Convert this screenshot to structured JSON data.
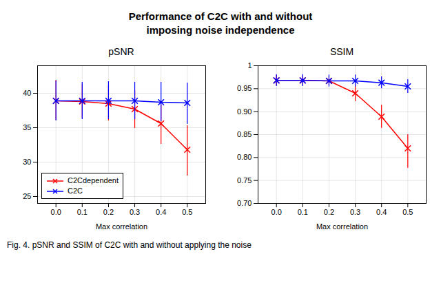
{
  "title": "Performance of C2C with and without\nimposing noise independence",
  "caption": "Fig. 4. pSNR and SSIM of C2C with and without applying the noise",
  "chart_data": [
    {
      "type": "line",
      "title": "pSNR",
      "xlabel": "Max correlation",
      "x": [
        0.0,
        0.1,
        0.2,
        0.3,
        0.4,
        0.5
      ],
      "xlim": [
        -0.07,
        0.57
      ],
      "xticks": [
        {
          "value": 0.0,
          "label": "0.0"
        },
        0.1,
        0.2,
        0.3,
        0.4,
        0.5
      ],
      "ylim": [
        24,
        44
      ],
      "yticks": [
        25,
        30,
        35,
        40
      ],
      "grid": true,
      "legend": "lower left",
      "series": [
        {
          "name": "C2Cdependent",
          "color": "#FF0000",
          "marker": "x",
          "values": [
            38.9,
            38.8,
            38.5,
            37.7,
            35.6,
            31.8
          ],
          "error_upper": [
            3.0,
            2.5,
            2.6,
            2.7,
            2.7,
            3.5
          ],
          "error_lower": [
            2.8,
            2.4,
            2.5,
            2.8,
            3.0,
            3.8
          ]
        },
        {
          "name": "C2C",
          "color": "#0000FF",
          "marker": "x",
          "values": [
            38.9,
            38.9,
            38.9,
            38.9,
            38.7,
            38.6
          ],
          "error_upper": [
            2.9,
            2.7,
            2.8,
            2.7,
            2.9,
            2.9
          ],
          "error_lower": [
            2.9,
            2.7,
            2.7,
            2.7,
            2.8,
            3.1
          ]
        }
      ]
    },
    {
      "type": "line",
      "title": "SSIM",
      "xlabel": "Max correlation",
      "x": [
        0.0,
        0.1,
        0.2,
        0.3,
        0.4,
        0.5
      ],
      "xlim": [
        -0.07,
        0.57
      ],
      "xticks": [
        {
          "value": 0.0,
          "label": "0.0"
        },
        0.1,
        0.2,
        0.3,
        0.4,
        0.5
      ],
      "ylim": [
        0.7,
        1.0
      ],
      "yticks": [
        {
          "value": 0.7,
          "label": "0.70"
        },
        0.75,
        {
          "value": 0.8,
          "label": "0.80"
        },
        0.85,
        {
          "value": 0.9,
          "label": "0.90"
        },
        0.95,
        1
      ],
      "grid": true,
      "series": [
        {
          "name": "C2Cdependent",
          "color": "#FF0000",
          "marker": "x",
          "values": [
            0.968,
            0.968,
            0.967,
            0.94,
            0.889,
            0.82
          ],
          "error_upper": [
            0.011,
            0.01,
            0.01,
            0.018,
            0.025,
            0.03
          ],
          "error_lower": [
            0.011,
            0.01,
            0.01,
            0.018,
            0.025,
            0.043
          ]
        },
        {
          "name": "C2C",
          "color": "#0000FF",
          "marker": "x",
          "values": [
            0.968,
            0.968,
            0.967,
            0.967,
            0.963,
            0.955
          ],
          "error_upper": [
            0.013,
            0.013,
            0.013,
            0.013,
            0.013,
            0.015
          ],
          "error_lower": [
            0.013,
            0.013,
            0.013,
            0.013,
            0.013,
            0.015
          ]
        }
      ]
    }
  ]
}
